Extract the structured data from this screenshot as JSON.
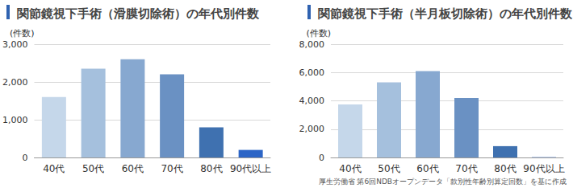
{
  "chart_data": [
    {
      "type": "bar",
      "title": "関節鏡視下手術（滑膜切除術）の年代別件数",
      "y_label": "(件数)",
      "categories": [
        "40代",
        "50代",
        "60代",
        "70代",
        "80代",
        "90代以上"
      ],
      "values": [
        1600,
        2350,
        2600,
        2200,
        800,
        200
      ],
      "colors": [
        "#c5d7ea",
        "#a5c0dd",
        "#87a8d0",
        "#6a91c3",
        "#3f71b0",
        "#2c65c6"
      ],
      "ylim": [
        0,
        3000
      ],
      "yticks": [
        0,
        {
          "value": 1000,
          "label": "1,000"
        },
        {
          "value": 2000,
          "label": "2,000"
        },
        {
          "value": 3000,
          "label": "3,000"
        }
      ],
      "grid": true
    },
    {
      "type": "bar",
      "title": "関節鏡視下手術（半月板切除術）の年代別件数",
      "y_label": "(件数)",
      "categories": [
        "40代",
        "50代",
        "60代",
        "70代",
        "80代",
        "90代以上"
      ],
      "values": [
        3750,
        5300,
        6100,
        4200,
        800,
        20
      ],
      "colors": [
        "#c5d7ea",
        "#a5c0dd",
        "#87a8d0",
        "#6a91c3",
        "#3f71b0",
        "#2c65c6"
      ],
      "ylim": [
        0,
        8000
      ],
      "yticks": [
        0,
        {
          "value": 2000,
          "label": "2,000"
        },
        {
          "value": 4000,
          "label": "4,000"
        },
        {
          "value": 6000,
          "label": "6,000"
        },
        {
          "value": 8000,
          "label": "8,000"
        }
      ],
      "grid": true,
      "annotation": "厚生労働省 第6回NDBオープンデータ「款別性年齢別算定回数」を基に作成"
    }
  ]
}
